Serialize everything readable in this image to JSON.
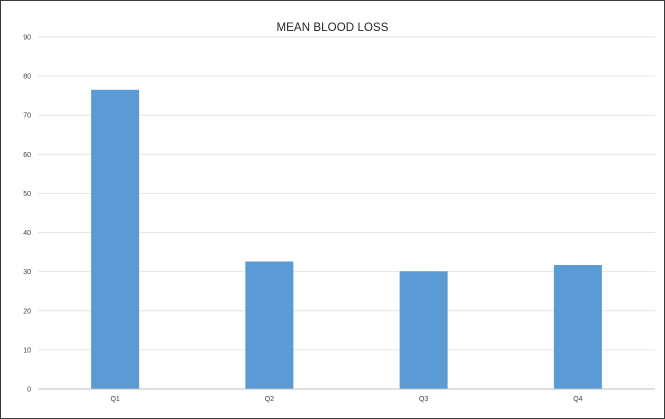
{
  "chart_data": {
    "type": "bar",
    "title": "MEAN BLOOD LOSS",
    "xlabel": "",
    "ylabel": "",
    "categories": [
      "Q1",
      "Q2",
      "Q3",
      "Q4"
    ],
    "values": [
      76.5,
      32.6,
      30.1,
      31.7
    ],
    "ylim": [
      0,
      90
    ],
    "yticks": [
      0,
      10,
      20,
      30,
      40,
      50,
      60,
      70,
      80,
      90
    ],
    "grid": true,
    "legend": "none",
    "bar_color": "#5b9bd5",
    "grid_color": "#e6e6e6",
    "axis_color": "#bfbfbf"
  }
}
